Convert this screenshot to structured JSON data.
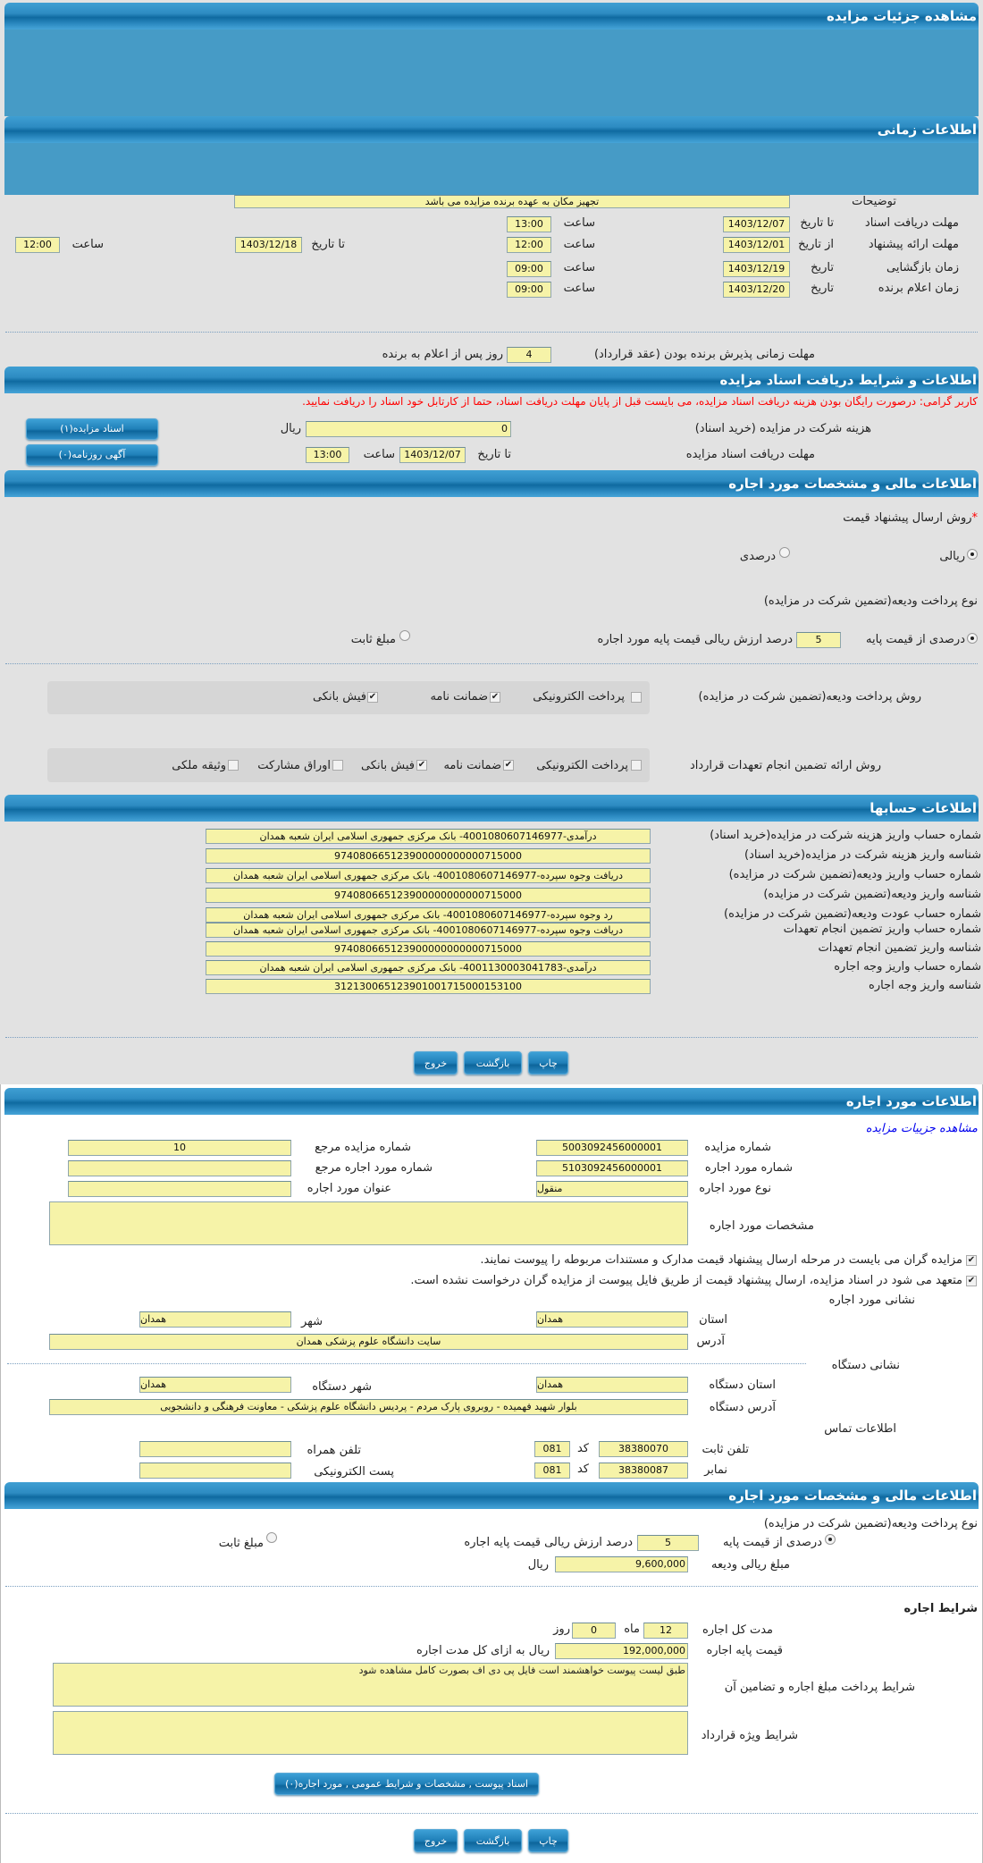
{
  "colors": {
    "header": "#1f7fb8",
    "input_bg": "#f6f3a8",
    "gray_bg": "#e2e2e2",
    "warning": "#ff0000",
    "link": "#0000ee"
  },
  "header_main": "مشاهده جزئیات مزایده",
  "time_info": {
    "title": "اطلاعات زمانی",
    "desc_label": "توضیحات",
    "desc_value": "تجهیز مکان به عهده برنده مزایده می باشد",
    "doc_deadline_label": "مهلت دریافت اسناد",
    "to_date": "تا تاریخ",
    "from_date": "از تاریخ",
    "date": "تاریخ",
    "hour": "ساعت",
    "doc_deadline_date": "1403/12/07",
    "doc_deadline_time": "13:00",
    "offer_label": "مهلت ارائه پیشنهاد",
    "offer_from_date": "1403/12/01",
    "offer_from_time": "12:00",
    "offer_to_date": "1403/12/18",
    "offer_to_time": "12:00",
    "opening_label": "زمان بازگشایی",
    "opening_date": "1403/12/19",
    "opening_time": "09:00",
    "winner_label": "زمان اعلام برنده",
    "winner_date": "1403/12/20",
    "winner_time": "09:00",
    "contract_deadline_label": "مهلت زمانی پذیرش برنده بودن (عقد قرارداد)",
    "contract_days": "4",
    "contract_days_suffix": "روز پس از اعلام به برنده"
  },
  "docs": {
    "title": "اطلاعات و شرایط دریافت اسناد مزایده",
    "warning": "کاربر گرامی: درصورت رایگان بودن هزینه دریافت اسناد مزایده، می بایست قبل از پایان مهلت دریافت اسناد، حتما از کارتابل خود اسناد را دریافت نمایید.",
    "fee_label": "هزینه شرکت در مزایده (خرید اسناد)",
    "fee_value": "0",
    "currency": "ریال",
    "deadline_label": "مهلت دریافت اسناد مزایده",
    "deadline_date": "1403/12/07",
    "deadline_time": "13:00",
    "auction_docs_button": "اسناد مزایده(۱)",
    "newspaper_button": "آگهی روزنامه(۰)"
  },
  "finance": {
    "title": "اطلاعات مالی و مشخصات مورد اجاره",
    "price_method_label": "روش ارسال پیشنهاد قیمت",
    "required_mark": "*",
    "rial_option": "ریالی",
    "percent_option": "درصدی",
    "deposit_type_label": "نوع پرداخت ودیعه(تضمین شرکت در مزایده)",
    "percent_of_base": "درصدی از قیمت پایه",
    "percent_value": "5",
    "percent_suffix": "درصد ارزش ریالی قیمت پایه مورد اجاره",
    "fixed_amount": "مبلغ ثابت",
    "deposit_method_label": "روش پرداخت ودیعه(تضمین شرکت در مزایده)",
    "deposit_methods": [
      {
        "label": "پرداخت الکترونیکی",
        "checked": false
      },
      {
        "label": "ضمانت نامه",
        "checked": true
      },
      {
        "label": "فیش بانکی",
        "checked": true
      }
    ],
    "guarantee_label": "روش ارائه تضمین انجام تعهدات قرارداد",
    "guarantee_methods": [
      {
        "label": "پرداخت الکترونیکی",
        "checked": false
      },
      {
        "label": "ضمانت نامه",
        "checked": true
      },
      {
        "label": "فیش بانکی",
        "checked": true
      },
      {
        "label": "اوراق مشارکت",
        "checked": false
      },
      {
        "label": "وثیقه ملکی",
        "checked": false
      }
    ]
  },
  "accounts": {
    "title": "اطلاعات حسابها",
    "rows": [
      {
        "label": "شماره حساب واریز هزینه شرکت در مزایده(خرید اسناد)",
        "value": "درآمدی-4001080607146977- بانک مرکزی جمهوری اسلامی ایران شعبه همدان"
      },
      {
        "label": "شناسه واریز هزینه شرکت در مزایده(خرید اسناد)",
        "value": "974080665123900000000000715000"
      },
      {
        "label": "شماره حساب واریز ودیعه(تضمین شرکت در مزایده)",
        "value": "دریافت وجوه سپرده-4001080607146977- بانک مرکزی جمهوری اسلامی ایران شعبه همدان"
      },
      {
        "label": "شناسه واریز ودیعه(تضمین شرکت در مزایده)",
        "value": "974080665123900000000000715000"
      },
      {
        "label": "شماره حساب عودت ودیعه(تضمین شرکت در مزایده)",
        "value": "رد وجوه سپرده-4001080607146977- بانک مرکزی جمهوری اسلامی ایران شعبه همدان"
      },
      {
        "label": "شماره حساب واریز تضمین انجام تعهدات",
        "value": "دریافت وجوه سپرده-4001080607146977- بانک مرکزی جمهوری اسلامی ایران شعبه همدان"
      },
      {
        "label": "شناسه واریز تضمین انجام تعهدات",
        "value": "974080665123900000000000715000"
      },
      {
        "label": "شماره حساب واریز وجه اجاره",
        "value": "درآمدی-4001130003041783- بانک مرکزی جمهوری اسلامی ایران شعبه همدان"
      },
      {
        "label": "شناسه واریز وجه اجاره",
        "value": "312130065123901001715000153100"
      }
    ]
  },
  "actions": {
    "print": "چاپ",
    "back": "بازگشت",
    "exit": "خروج"
  },
  "lease": {
    "title": "اطلاعات مورد اجاره",
    "details_link": "مشاهده جزییات مزایده",
    "auction_no_label": "شماره مزایده",
    "auction_no": "5003092456000001",
    "ref_auction_label": "شماره مزایده مرجع",
    "ref_auction": "10",
    "item_no_label": "شماره مورد اجاره",
    "item_no": "5103092456000001",
    "ref_item_label": "شماره مورد اجاره مرجع",
    "ref_item": "",
    "type_label": "نوع مورد اجاره",
    "type": "منقول",
    "item_title_label": "عنوان مورد اجاره",
    "item_title": "",
    "specs_label": "مشخصات مورد اجاره",
    "specs": "",
    "check1": "مزایده گران می بایست در مرحله ارسال پیشنهاد قیمت مدارک و مستندات مربوطه را پیوست نمایند.",
    "check2": "متعهد می شود در اسناد مزایده، ارسال پیشنهاد قیمت از طریق فایل پیوست از مزایده گران درخواست نشده است.",
    "address_title": "نشانی مورد اجاره",
    "province_label": "استان",
    "province": "همدان",
    "city_label": "شهر",
    "city": "همدان",
    "address_label": "آدرس",
    "address": "سایت دانشگاه علوم پزشکی همدان",
    "org_title": "نشانی دستگاه",
    "org_province_label": "استان دستگاه",
    "org_province": "همدان",
    "org_city_label": "شهر دستگاه",
    "org_city": "همدان",
    "org_address_label": "آدرس دستگاه",
    "org_address": "بلوار شهید فهمیده - روبروی پارک مردم - پردیس دانشگاه علوم پزشکی - معاونت فرهنگی و دانشجویی",
    "contact_title": "اطلاعات تماس",
    "phone_label": "تلفن ثابت",
    "phone": "38380070",
    "code_label": "کد",
    "phone_code": "081",
    "mobile_label": "تلفن همراه",
    "mobile": "",
    "fax_label": "نمابر",
    "fax": "38380087",
    "fax_code": "081",
    "email_label": "پست الکترونیکی",
    "email": ""
  },
  "lease_finance": {
    "title": "اطلاعات مالی و مشخصات مورد اجاره",
    "deposit_type_label": "نوع پرداخت ودیعه(تضمین شرکت در مزایده)",
    "percent_of_base": "درصدی از قیمت پایه",
    "percent_value": "5",
    "percent_suffix": "درصد ارزش ریالی قیمت پایه اجاره",
    "fixed_amount": "مبلغ ثابت",
    "deposit_amount_label": "مبلغ ریالی ودیعه",
    "deposit_amount": "9,600,000",
    "currency": "ریال",
    "terms_title": "شرایط اجاره",
    "duration_label": "مدت کل اجاره",
    "months": "12",
    "month_unit": "ماه",
    "days": "0",
    "day_unit": "روز",
    "base_price_label": "قیمت پایه اجاره",
    "base_price": "192,000,000",
    "base_price_suffix": "ریال به ازای کل مدت اجاره",
    "payment_terms_label": "شرایط پرداخت مبلغ اجاره و تضامین آن",
    "payment_terms": "طبق لیست پیوست خواهشمند است فایل پی دی اف بصورت کامل مشاهده شود",
    "special_terms_label": "شرایط ویژه قرارداد",
    "special_terms": "",
    "attachments_button": "اسناد پیوست , مشخصات و شرایط عمومی , مورد اجاره(۰)"
  }
}
